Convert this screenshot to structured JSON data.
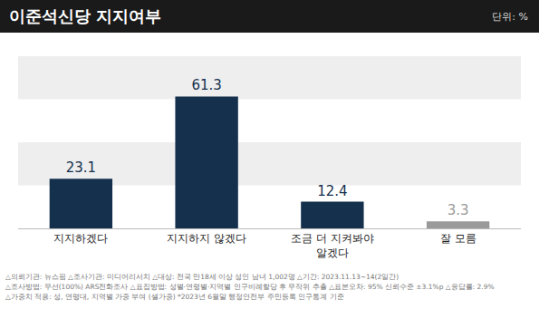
{
  "chart_data": {
    "type": "bar",
    "title": "이준석신당 지지여부",
    "unit": "단위: %",
    "categories": [
      "지지하겠다",
      "지지하지 않겠다",
      "조금 더 지켜봐야\n알겠다",
      "잘 모름"
    ],
    "values": [
      23.1,
      61.3,
      12.4,
      3.3
    ],
    "colors": [
      "#14304d",
      "#14304d",
      "#14304d",
      "#9a9a9a"
    ],
    "ylim": [
      0,
      80
    ],
    "yticks": [
      0,
      20,
      40,
      60,
      80
    ],
    "grid": true,
    "data_labels": true,
    "tick_labels": "x",
    "notes": [
      "△의뢰기관: 뉴스핌 △조사기관: 미디어리서치 △대상: 전국 만18세 이상 성인 남녀 1,002명 △기간: 2023.11.13~14(2일간)",
      "△조사방법: 무선(100%) ARS전화조사 △표집방법: 성별·연령별·지역별 인구비례할당 후 무작위 추출 △표본오차: 95% 신뢰수준 ±3.1%p △응답률: 2.9%",
      "△가중치 적용: 성, 연령대, 지역별 가중 부여 (셀가중) *2023년 6월말 행정안전부 주민등록 인구통계 기준"
    ]
  }
}
